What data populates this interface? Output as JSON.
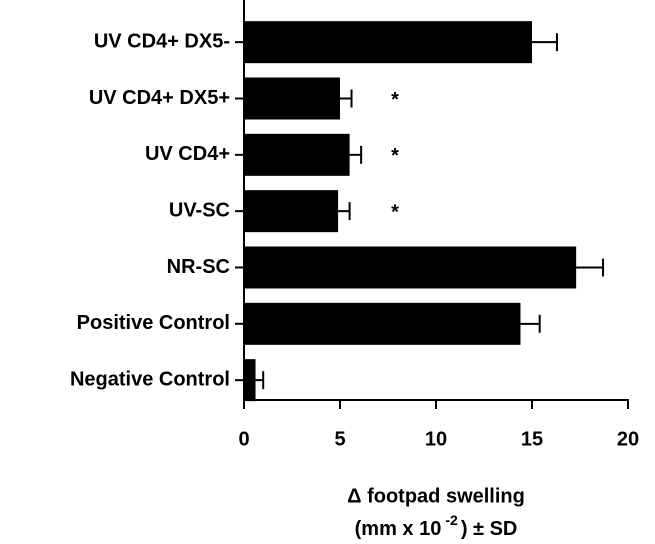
{
  "chart_data": {
    "type": "hbar",
    "categories": [
      "UV CD4+ DX5-",
      "UV CD4+ DX5+",
      "UV CD4+",
      "UV-SC",
      "NR-SC",
      "Positive Control",
      "Negative Control"
    ],
    "values": [
      15.0,
      5.0,
      5.5,
      4.9,
      17.3,
      14.4,
      0.6
    ],
    "errors": [
      1.3,
      0.6,
      0.6,
      0.6,
      1.4,
      1.0,
      0.4
    ],
    "annotations": [
      null,
      "*",
      "*",
      "*",
      null,
      null,
      null
    ],
    "color": "#000000",
    "xlim": [
      0,
      20
    ],
    "xticks": [
      0,
      5,
      10,
      15,
      20
    ],
    "xlabel": "Δ footpad swelling",
    "xlabel_unit": {
      "before": "(mm x 10",
      "sup": "-2",
      "after": ") ± SD"
    }
  }
}
